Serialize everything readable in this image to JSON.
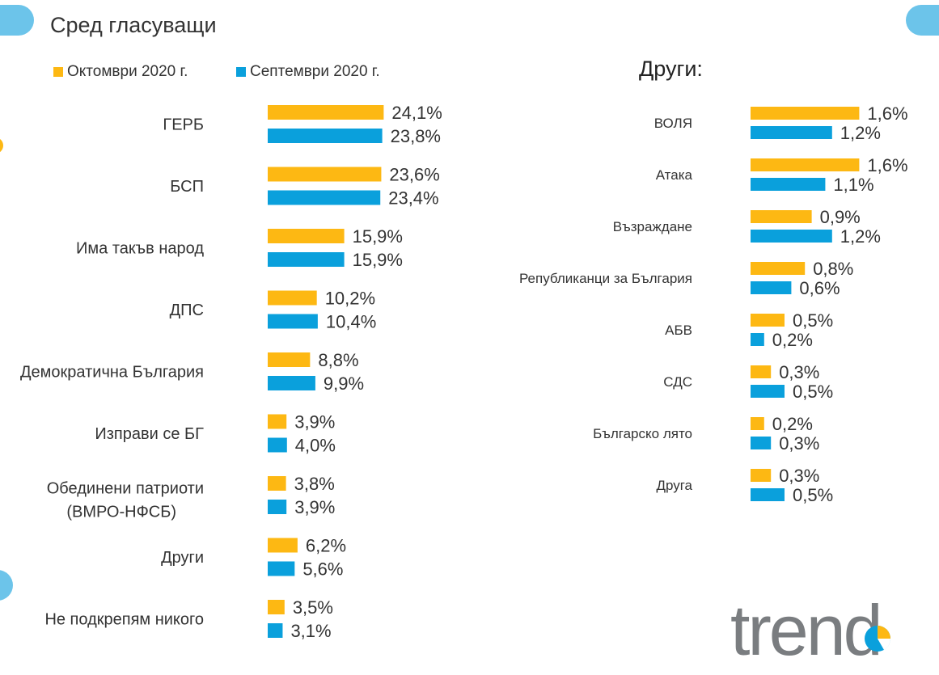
{
  "page": {
    "title": "Сред гласуващи",
    "subtitle": "Други:"
  },
  "legend": [
    {
      "label": "Октомври 2020 г.",
      "color": "#FDB813"
    },
    {
      "label": "Септември 2020 г.",
      "color": "#0AA0DC"
    }
  ],
  "logo": {
    "text": "trend",
    "icon": "trend-logo"
  },
  "chart_data": [
    {
      "type": "bar",
      "orientation": "horizontal",
      "categories": [
        "ГЕРБ",
        "БСП",
        "Има такъв народ",
        "ДПС",
        "Демократична България",
        "Изправи се БГ",
        "Обединени патриоти (ВМРО-НФСБ)",
        "Други",
        "Не подкрепям никого"
      ],
      "series": [
        {
          "name": "Октомври 2020 г.",
          "color": "#FDB813",
          "values": [
            24.1,
            23.6,
            15.9,
            10.2,
            8.8,
            3.9,
            3.8,
            6.2,
            3.5
          ],
          "labels": [
            "24,1%",
            "23,6%",
            "15,9%",
            "10,2%",
            "8,8%",
            "3,9%",
            "3,8%",
            "6,2%",
            "3,5%"
          ]
        },
        {
          "name": "Септември 2020 г.",
          "color": "#0AA0DC",
          "values": [
            23.8,
            23.4,
            15.9,
            10.4,
            9.9,
            4.0,
            3.9,
            5.6,
            3.1
          ],
          "labels": [
            "23,8%",
            "23,4%",
            "15,9%",
            "10,4%",
            "9,9%",
            "4,0%",
            "3,9%",
            "5,6%",
            "3,1%"
          ]
        }
      ],
      "grid": false
    },
    {
      "type": "bar",
      "orientation": "horizontal",
      "title": "Други:",
      "categories": [
        "ВОЛЯ",
        "Атака",
        "Възраждане",
        "Републиканци за България",
        "АБВ",
        "СДС",
        "Българско лято",
        "Друга"
      ],
      "series": [
        {
          "name": "Октомври 2020 г.",
          "color": "#FDB813",
          "values": [
            1.6,
            1.6,
            0.9,
            0.8,
            0.5,
            0.3,
            0.2,
            0.3
          ],
          "labels": [
            "1,6%",
            "1,6%",
            "0,9%",
            "0,8%",
            "0,5%",
            "0,3%",
            "0,2%",
            "0,3%"
          ]
        },
        {
          "name": "Септември 2020 г.",
          "color": "#0AA0DC",
          "values": [
            1.2,
            1.1,
            1.2,
            0.6,
            0.2,
            0.5,
            0.3,
            0.5
          ],
          "labels": [
            "1,2%",
            "1,1%",
            "1,2%",
            "0,6%",
            "0,2%",
            "0,5%",
            "0,3%",
            "0,5%"
          ]
        }
      ],
      "grid": false
    }
  ]
}
